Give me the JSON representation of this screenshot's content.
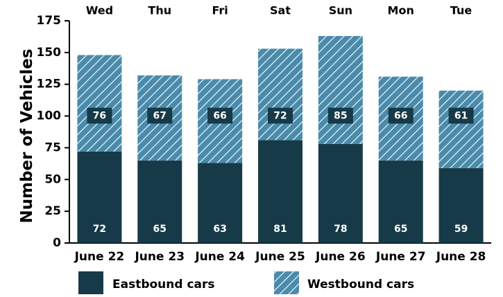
{
  "chart_data": {
    "type": "bar",
    "stacked": true,
    "title": "",
    "ylabel": "Number of Vehicles",
    "xlabel": "",
    "ylim": [
      0,
      175
    ],
    "yticks": [
      0,
      25,
      50,
      75,
      100,
      125,
      150,
      175
    ],
    "categories": [
      "June 22",
      "June 23",
      "June 24",
      "June 25",
      "June 26",
      "June 27",
      "June 28"
    ],
    "day_labels": [
      "Wed",
      "Thu",
      "Fri",
      "Sat",
      "Sun",
      "Mon",
      "Tue"
    ],
    "series": [
      {
        "name": "Eastbound cars",
        "values": [
          72,
          65,
          63,
          81,
          78,
          65,
          59
        ],
        "color": "#173a48",
        "pattern": "solid"
      },
      {
        "name": "Westbound cars",
        "values": [
          76,
          67,
          66,
          72,
          85,
          66,
          61
        ],
        "color": "#4a8bab",
        "pattern": "hatch"
      }
    ],
    "legend_position": "bottom",
    "grid": false,
    "label_box_color": "#173a48",
    "label_text_color": "#ffffff"
  }
}
